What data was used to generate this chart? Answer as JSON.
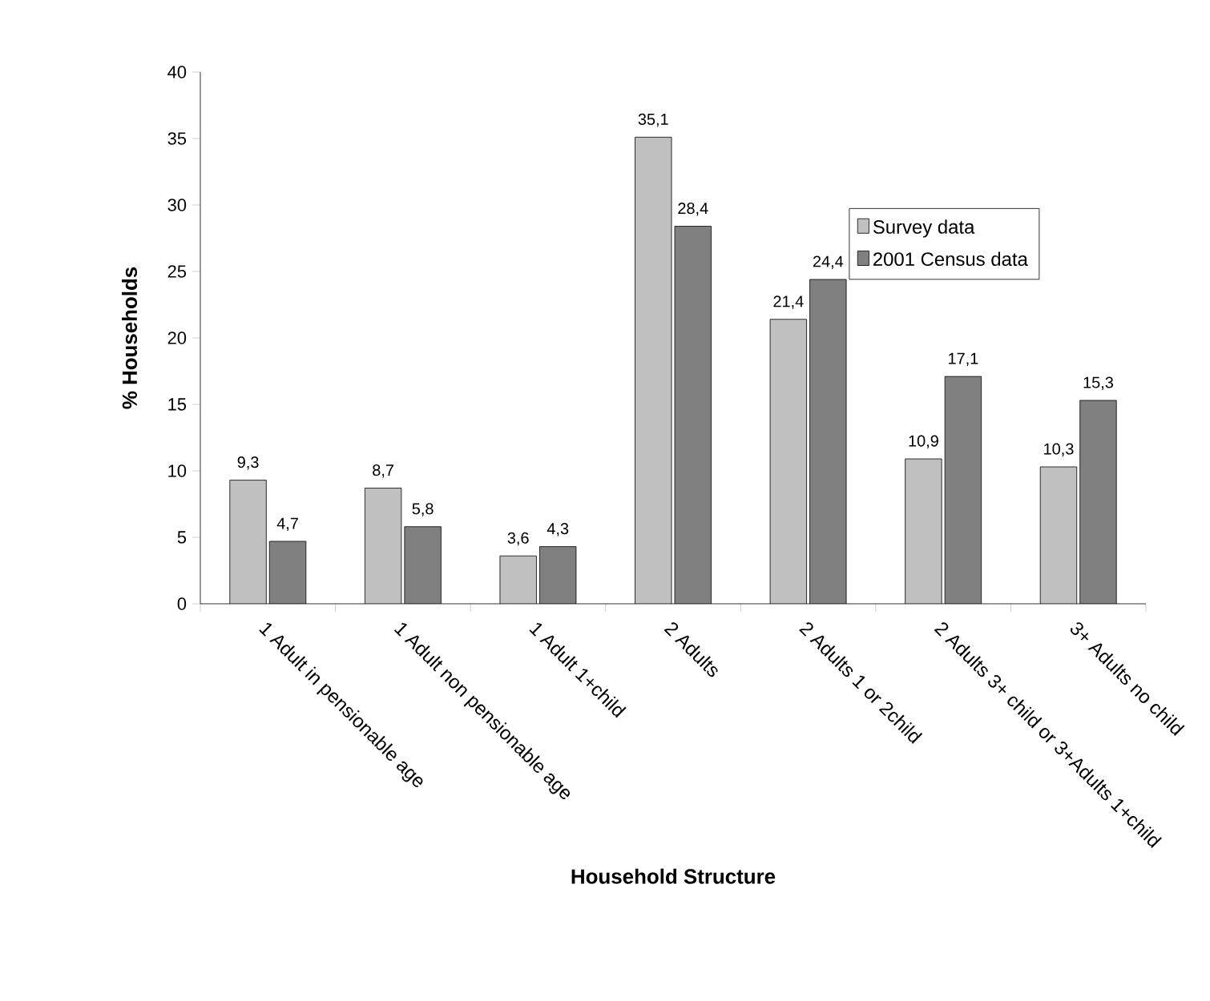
{
  "chart_data": {
    "type": "bar",
    "xlabel": "Household Structure",
    "ylabel": "% Households",
    "categories": [
      "1 Adult in pensionable age",
      "1 Adult non pensionable age",
      "1 Adult 1+child",
      "2 Adults",
      "2 Adults 1 or 2child",
      "2 Adults 3+ child or 3+Adults 1+child",
      "3+ Adults no child"
    ],
    "series": [
      {
        "name": "Survey data",
        "color": "#c0c0c0",
        "values": [
          9.3,
          8.7,
          3.6,
          35.1,
          21.4,
          10.9,
          10.3
        ],
        "value_labels": [
          "9,3",
          "8,7",
          "3,6",
          "35,1",
          "21,4",
          "10,9",
          "10,3"
        ]
      },
      {
        "name": "2001 Census data",
        "color": "#808080",
        "values": [
          4.7,
          5.8,
          4.3,
          28.4,
          24.4,
          17.1,
          15.3
        ],
        "value_labels": [
          "4,7",
          "5,8",
          "4,3",
          "28,4",
          "24,4",
          "17,1",
          "15,3"
        ]
      }
    ],
    "ylim": [
      0,
      40
    ],
    "yticks": [
      0,
      5,
      10,
      15,
      20,
      25,
      30,
      35,
      40
    ],
    "grid": false,
    "legend": "top right"
  }
}
